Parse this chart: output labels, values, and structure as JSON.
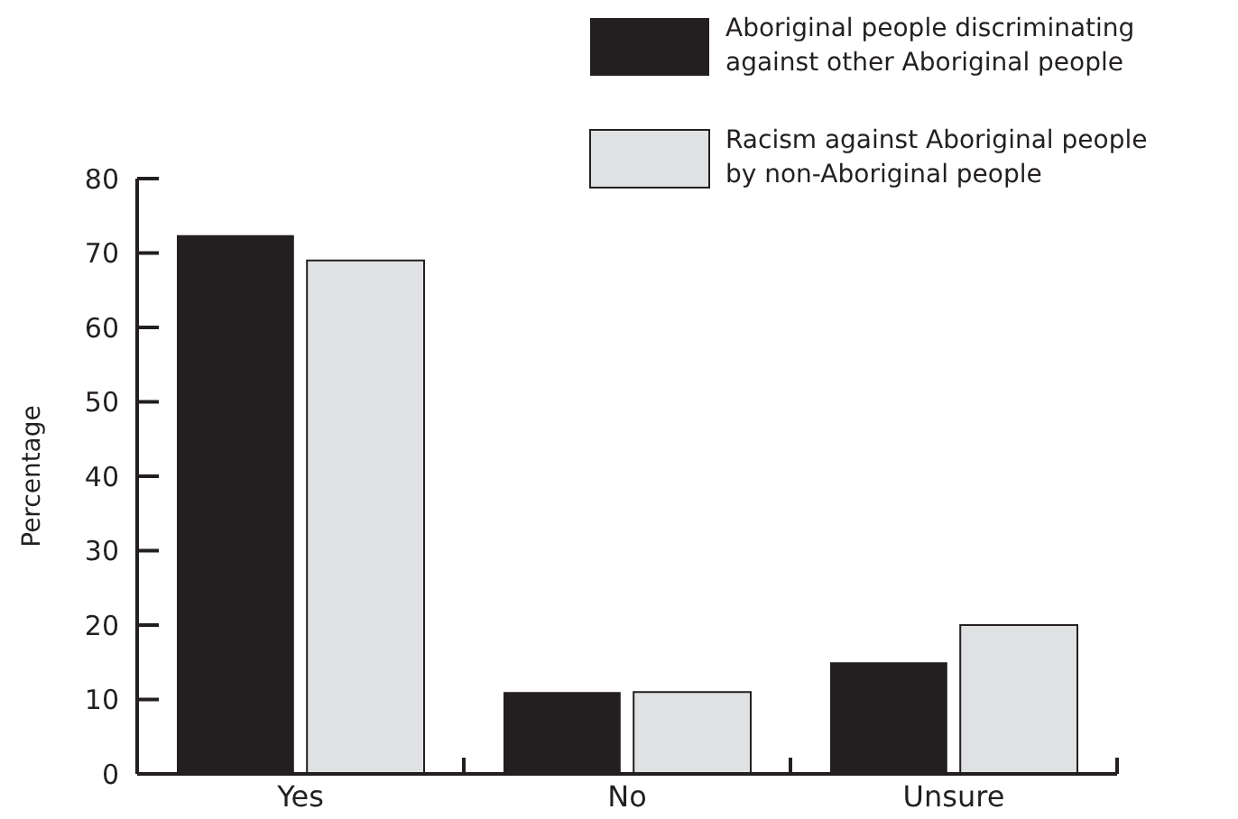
{
  "chart_data": {
    "type": "bar",
    "ylabel": "Percentage",
    "categories": [
      "Yes",
      "No",
      "Unsure"
    ],
    "series": [
      {
        "name": "Aboriginal people discriminating against other Aboriginal people",
        "color": "#231f20",
        "values": [
          72.4,
          11,
          15
        ]
      },
      {
        "name": "Racism against Aboriginal people by non-Aboriginal people",
        "color": "#e0e1e3",
        "values": [
          69,
          11,
          20
        ]
      }
    ],
    "ylim": [
      0,
      80
    ],
    "yticks": [
      0,
      10,
      20,
      30,
      40,
      50,
      60,
      70,
      80
    ],
    "grid": false,
    "legend": "top right"
  }
}
